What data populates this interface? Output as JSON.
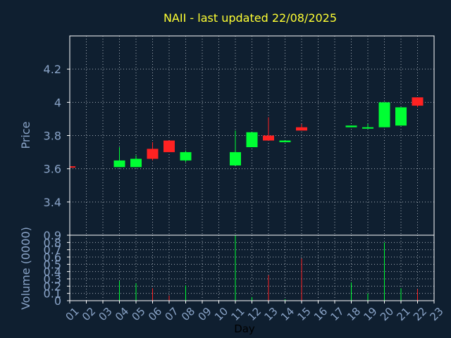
{
  "chart_data": [
    {
      "type": "candlestick",
      "title": "NAII - last updated 22/08/2025",
      "ylabel": "Price",
      "ylim": [
        3.2,
        4.4
      ],
      "yticks": [
        3.4,
        3.6,
        3.8,
        4.0,
        4.2
      ],
      "ytick_labels": [
        "3.4",
        "3.6",
        "3.8",
        "4",
        "4.2"
      ],
      "grid": true,
      "x": [
        1,
        4,
        5,
        6,
        7,
        8,
        11,
        12,
        13,
        14,
        15,
        18,
        19,
        20,
        21,
        22
      ],
      "candles": [
        {
          "day": 1,
          "open": 3.615,
          "high": 3.615,
          "low": 3.61,
          "close": 3.61
        },
        {
          "day": 4,
          "open": 3.61,
          "high": 3.73,
          "low": 3.61,
          "close": 3.65
        },
        {
          "day": 5,
          "open": 3.61,
          "high": 3.68,
          "low": 3.61,
          "close": 3.66
        },
        {
          "day": 6,
          "open": 3.72,
          "high": 3.76,
          "low": 3.65,
          "close": 3.66
        },
        {
          "day": 7,
          "open": 3.77,
          "high": 3.77,
          "low": 3.7,
          "close": 3.7
        },
        {
          "day": 8,
          "open": 3.65,
          "high": 3.71,
          "low": 3.64,
          "close": 3.7
        },
        {
          "day": 11,
          "open": 3.62,
          "high": 3.83,
          "low": 3.62,
          "close": 3.7
        },
        {
          "day": 12,
          "open": 3.73,
          "high": 3.82,
          "low": 3.73,
          "close": 3.82
        },
        {
          "day": 13,
          "open": 3.8,
          "high": 3.91,
          "low": 3.77,
          "close": 3.77
        },
        {
          "day": 14,
          "open": 3.76,
          "high": 3.77,
          "low": 3.76,
          "close": 3.77
        },
        {
          "day": 15,
          "open": 3.85,
          "high": 3.87,
          "low": 3.83,
          "close": 3.83
        },
        {
          "day": 18,
          "open": 3.85,
          "high": 3.86,
          "low": 3.85,
          "close": 3.86
        },
        {
          "day": 19,
          "open": 3.85,
          "high": 3.87,
          "low": 3.845,
          "close": 3.85
        },
        {
          "day": 20,
          "open": 3.85,
          "high": 4.0,
          "low": 3.85,
          "close": 4.0
        },
        {
          "day": 21,
          "open": 3.86,
          "high": 3.97,
          "low": 3.86,
          "close": 3.97
        },
        {
          "day": 22,
          "open": 4.03,
          "high": 4.03,
          "low": 3.97,
          "close": 3.98
        }
      ]
    },
    {
      "type": "bar",
      "ylabel": "Volume (0000)",
      "xlabel": "Day",
      "ylim": [
        0,
        0.9
      ],
      "yticks": [
        0,
        0.1,
        0.2,
        0.3,
        0.4,
        0.5,
        0.6,
        0.7,
        0.8,
        0.9
      ],
      "ytick_labels": [
        "0",
        "0.1",
        "0.2",
        "0.3",
        "0.4",
        "0.5",
        "0.6",
        "0.7",
        "0.8",
        "0.9"
      ],
      "xlim": [
        1,
        23
      ],
      "xticks": [
        1,
        2,
        3,
        4,
        5,
        6,
        7,
        8,
        9,
        10,
        11,
        12,
        13,
        14,
        15,
        16,
        17,
        18,
        19,
        20,
        21,
        22,
        23
      ],
      "xtick_labels": [
        "01",
        "02",
        "03",
        "04",
        "05",
        "06",
        "07",
        "08",
        "09",
        "10",
        "11",
        "12",
        "13",
        "14",
        "15",
        "16",
        "17",
        "18",
        "19",
        "20",
        "21",
        "22",
        "23"
      ],
      "grid": true,
      "bars": [
        {
          "day": 1,
          "value": 0.0,
          "direction": "down"
        },
        {
          "day": 4,
          "value": 0.27,
          "direction": "up"
        },
        {
          "day": 5,
          "value": 0.24,
          "direction": "up"
        },
        {
          "day": 6,
          "value": 0.17,
          "direction": "down"
        },
        {
          "day": 7,
          "value": 0.07,
          "direction": "down"
        },
        {
          "day": 8,
          "value": 0.21,
          "direction": "up"
        },
        {
          "day": 11,
          "value": 0.9,
          "direction": "up"
        },
        {
          "day": 12,
          "value": 0.05,
          "direction": "up"
        },
        {
          "day": 13,
          "value": 0.35,
          "direction": "down"
        },
        {
          "day": 14,
          "value": 0.02,
          "direction": "up"
        },
        {
          "day": 15,
          "value": 0.58,
          "direction": "down"
        },
        {
          "day": 18,
          "value": 0.25,
          "direction": "up"
        },
        {
          "day": 19,
          "value": 0.1,
          "direction": "up"
        },
        {
          "day": 20,
          "value": 0.8,
          "direction": "up"
        },
        {
          "day": 21,
          "value": 0.17,
          "direction": "up"
        },
        {
          "day": 22,
          "value": 0.16,
          "direction": "down"
        }
      ]
    }
  ],
  "colors": {
    "background": "#0f1f30",
    "plot_border": "#ffffff",
    "grid": "#c8d0d8",
    "axis_text": "#8aa4c8",
    "title": "#ffff33",
    "up": "#00ff33",
    "down": "#ff2222"
  }
}
